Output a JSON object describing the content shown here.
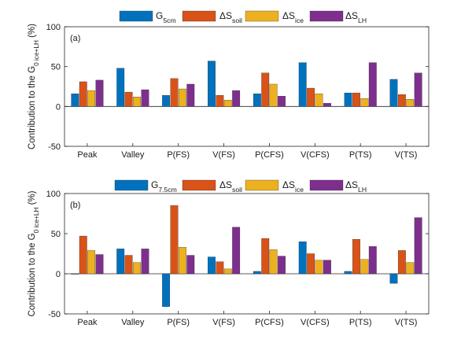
{
  "colors": {
    "G": "#0072BD",
    "soil": "#D95319",
    "ice": "#EDB120",
    "LH": "#7E2F8E"
  },
  "chart_data": [
    {
      "type": "bar",
      "panel_label": "(a)",
      "ylabel": {
        "prefix": "Contribution to the G",
        "sub": "0 ice+LH",
        "suffix": " (%)"
      },
      "ylim": [
        -50,
        100
      ],
      "yticks": [
        -50,
        0,
        50,
        100
      ],
      "categories": [
        "Peak",
        "Valley",
        "P(FS)",
        "V(FS)",
        "P(CFS)",
        "V(CFS)",
        "P(TS)",
        "V(TS)"
      ],
      "legend": [
        {
          "prefix": "G",
          "sub": "5cm",
          "color_key": "G"
        },
        {
          "prefix": "ΔS",
          "sub": "soil",
          "color_key": "soil"
        },
        {
          "prefix": "ΔS",
          "sub": "ice",
          "color_key": "ice"
        },
        {
          "prefix": "ΔS",
          "sub": "LH",
          "color_key": "LH"
        }
      ],
      "series": [
        {
          "key": "G",
          "values": [
            16,
            48,
            14,
            57,
            16,
            55,
            17,
            34
          ]
        },
        {
          "key": "soil",
          "values": [
            31,
            18,
            35,
            14,
            42,
            23,
            17,
            15
          ]
        },
        {
          "key": "ice",
          "values": [
            20,
            12,
            22,
            8,
            28,
            16,
            10,
            9
          ]
        },
        {
          "key": "LH",
          "values": [
            33,
            21,
            28,
            20,
            13,
            4,
            55,
            42
          ]
        }
      ]
    },
    {
      "type": "bar",
      "panel_label": "(b)",
      "ylabel": {
        "prefix": "Contribution to the G",
        "sub": "0 ice+LH",
        "suffix": " (%)"
      },
      "ylim": [
        -50,
        100
      ],
      "yticks": [
        -50,
        0,
        50,
        100
      ],
      "categories": [
        "Peak",
        "Valley",
        "P(FS)",
        "V(FS)",
        "P(CFS)",
        "V(CFS)",
        "P(TS)",
        "V(TS)"
      ],
      "legend": [
        {
          "prefix": "G",
          "sub": "7.5cm",
          "color_key": "G"
        },
        {
          "prefix": "ΔS",
          "sub": "soil",
          "color_key": "soil"
        },
        {
          "prefix": "ΔS",
          "sub": "ice",
          "color_key": "ice"
        },
        {
          "prefix": "ΔS",
          "sub": "LH",
          "color_key": "LH"
        }
      ],
      "series": [
        {
          "key": "G",
          "values": [
            0,
            31,
            -41,
            21,
            3,
            40,
            3,
            -12
          ]
        },
        {
          "key": "soil",
          "values": [
            47,
            23,
            85,
            15,
            44,
            25,
            43,
            29
          ]
        },
        {
          "key": "ice",
          "values": [
            29,
            14,
            33,
            6,
            30,
            17,
            18,
            14
          ]
        },
        {
          "key": "LH",
          "values": [
            24,
            31,
            23,
            58,
            22,
            17,
            34,
            70
          ]
        }
      ]
    }
  ]
}
